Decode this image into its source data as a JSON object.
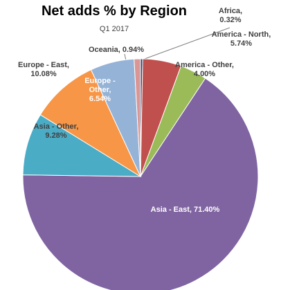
{
  "chart_data": {
    "type": "pie",
    "title": "Net adds % by Region",
    "subtitle": "Q1 2017",
    "values": [
      0.32,
      5.74,
      4.0,
      71.4,
      9.28,
      10.08,
      6.54,
      0.94
    ],
    "value_labels": [
      "Africa, 0.32%",
      "America - North, 5.74%",
      "America - Other, 4.00%",
      "Asia - East, 71.40%",
      "Asia - Other, 9.28%",
      "Europe - East, 10.08%",
      "Europe - Other, 6.54%",
      "Oceania, 0.94%"
    ],
    "colors": [
      "#1f497d",
      "#c0504d",
      "#9bbb59",
      "#8064a2",
      "#4bacc6",
      "#f79646",
      "#95b3d7",
      "#d99694"
    ]
  }
}
